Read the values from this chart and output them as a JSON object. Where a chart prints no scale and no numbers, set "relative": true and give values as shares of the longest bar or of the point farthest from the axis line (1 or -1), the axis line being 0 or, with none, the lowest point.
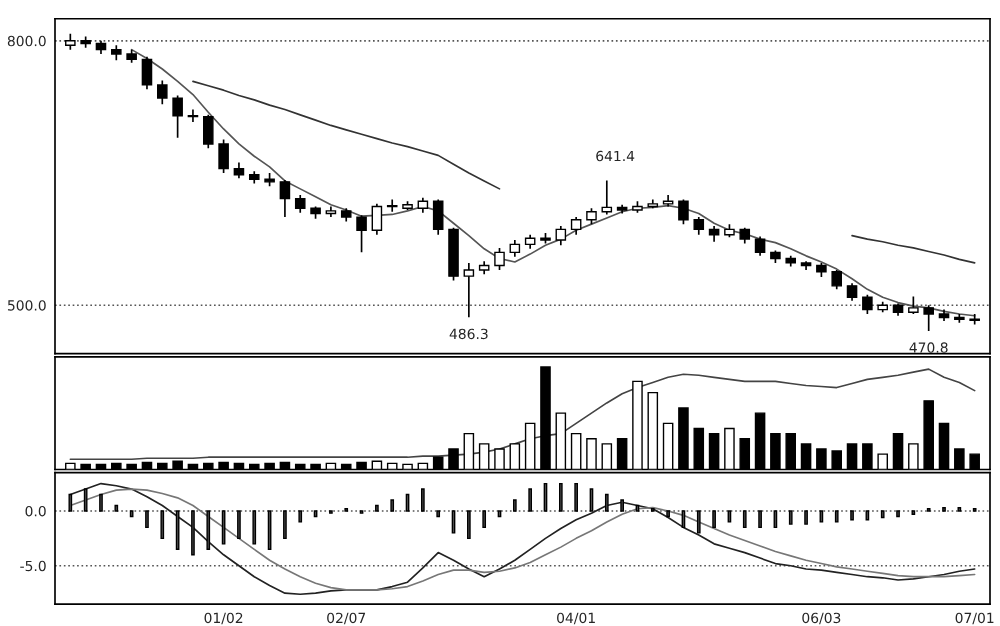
{
  "chart_data": [
    {
      "type": "candlestick",
      "categories": [
        null,
        null,
        null,
        null,
        null,
        null,
        null,
        null,
        null,
        null,
        null,
        null,
        null,
        null,
        null,
        null,
        null,
        null,
        null,
        null,
        null,
        null,
        null,
        null,
        null,
        null,
        null,
        null,
        null,
        null,
        null,
        null,
        null,
        null,
        null,
        null,
        null,
        null,
        null,
        null,
        null,
        null,
        null,
        null,
        null,
        null,
        null,
        null,
        null,
        null,
        null,
        null,
        null,
        null,
        null,
        null,
        null,
        null,
        null,
        null
      ],
      "ohlc": [
        [
          795,
          808,
          790,
          800
        ],
        [
          800,
          805,
          792,
          797
        ],
        [
          797,
          800,
          785,
          790
        ],
        [
          790,
          795,
          778,
          785
        ],
        [
          785,
          790,
          775,
          779
        ],
        [
          779,
          782,
          745,
          750
        ],
        [
          750,
          755,
          728,
          735
        ],
        [
          735,
          738,
          690,
          715
        ],
        [
          715,
          722,
          708,
          714
        ],
        [
          714,
          716,
          678,
          683
        ],
        [
          683,
          688,
          650,
          655
        ],
        [
          655,
          662,
          644,
          648
        ],
        [
          648,
          652,
          638,
          643
        ],
        [
          643,
          650,
          635,
          640
        ],
        [
          640,
          642,
          600,
          621
        ],
        [
          621,
          625,
          605,
          610
        ],
        [
          610,
          612,
          598,
          604
        ],
        [
          604,
          612,
          600,
          607
        ],
        [
          607,
          610,
          595,
          600
        ],
        [
          600,
          602,
          560,
          585
        ],
        [
          585,
          615,
          580,
          612
        ],
        [
          612,
          620,
          606,
          613
        ],
        [
          610,
          618,
          608,
          614
        ],
        [
          610,
          622,
          605,
          618
        ],
        [
          618,
          620,
          580,
          586
        ],
        [
          586,
          588,
          528,
          533
        ],
        [
          533,
          548,
          486.3,
          540
        ],
        [
          540,
          550,
          535,
          545
        ],
        [
          545,
          565,
          540,
          560
        ],
        [
          560,
          574,
          555,
          569
        ],
        [
          569,
          580,
          564,
          576
        ],
        [
          576,
          582,
          570,
          574
        ],
        [
          574,
          590,
          568,
          586
        ],
        [
          586,
          600,
          580,
          597
        ],
        [
          597,
          610,
          592,
          606
        ],
        [
          606,
          641.4,
          603,
          611
        ],
        [
          611,
          614,
          604,
          608
        ],
        [
          608,
          618,
          605,
          612
        ],
        [
          612,
          620,
          610,
          615
        ],
        [
          615,
          625,
          612,
          618
        ],
        [
          618,
          620,
          592,
          597
        ],
        [
          597,
          600,
          580,
          586
        ],
        [
          586,
          590,
          572,
          580
        ],
        [
          580,
          592,
          577,
          586
        ],
        [
          586,
          588,
          570,
          575
        ],
        [
          575,
          578,
          556,
          560
        ],
        [
          560,
          562,
          548,
          553
        ],
        [
          553,
          556,
          544,
          548
        ],
        [
          548,
          550,
          540,
          545
        ],
        [
          545,
          548,
          532,
          538
        ],
        [
          538,
          540,
          518,
          522
        ],
        [
          522,
          525,
          505,
          509
        ],
        [
          509,
          512,
          490,
          495
        ],
        [
          495,
          504,
          492,
          500
        ],
        [
          500,
          502,
          488,
          492
        ],
        [
          492,
          510,
          490,
          497
        ],
        [
          497,
          500,
          470.8,
          490
        ],
        [
          490,
          495,
          482,
          486
        ],
        [
          486,
          490,
          480,
          484
        ],
        [
          484,
          490,
          478,
          483
        ]
      ],
      "series": [
        {
          "type": "line",
          "color": "#555555",
          "values": [
            null,
            null,
            null,
            null,
            790,
            780,
            768,
            754,
            739,
            719,
            700,
            683,
            669,
            657,
            641,
            632,
            623,
            614,
            608,
            601,
            602,
            603,
            607,
            612,
            607,
            593,
            579,
            564,
            553,
            549,
            558,
            568,
            575,
            585,
            592,
            599,
            606,
            610,
            611,
            613,
            610,
            604,
            593,
            585,
            581,
            575,
            571,
            564,
            556,
            549,
            541,
            530,
            518,
            509,
            503,
            499,
            497,
            493,
            490,
            488
          ]
        },
        {
          "type": "line",
          "color": "#333333",
          "values": [
            null,
            null,
            null,
            null,
            null,
            null,
            null,
            null,
            754,
            749,
            744,
            738,
            733,
            727,
            722,
            716,
            710,
            704,
            699,
            694,
            689,
            684,
            680,
            675,
            670,
            660,
            650,
            641,
            632,
            null,
            null,
            null,
            null,
            null,
            null,
            null,
            null,
            null,
            null,
            null,
            null,
            null,
            null,
            null,
            null,
            null,
            null,
            null,
            null,
            null,
            null,
            579,
            575,
            572,
            568,
            565,
            561,
            557,
            552,
            548
          ]
        }
      ],
      "ylim": [
        445,
        825
      ],
      "yticks": [
        {
          "value": 500,
          "label": "500.0"
        },
        {
          "value": 800,
          "label": "800.0"
        }
      ],
      "grid": "y",
      "tick_labels": "y",
      "annotations": [
        {
          "text": "486.3",
          "y": 486.3
        },
        {
          "text": "641.4",
          "y": 641.4
        },
        {
          "text": "470.8",
          "y": 470.8
        }
      ]
    },
    {
      "type": "bar",
      "relative": true,
      "categories": [
        null,
        null,
        null,
        null,
        null,
        null,
        null,
        null,
        null,
        null,
        null,
        null,
        null,
        null,
        null,
        null,
        null,
        null,
        null,
        null,
        null,
        null,
        null,
        null,
        null,
        null,
        null,
        null,
        null,
        null,
        null,
        null,
        null,
        null,
        null,
        null,
        null,
        null,
        null,
        null,
        null,
        null,
        null,
        null,
        null,
        null,
        null,
        null,
        null,
        null,
        null,
        null,
        null,
        null,
        null,
        null,
        null,
        null,
        null,
        null
      ],
      "tick_labels": false,
      "series": [
        {
          "type": "bar",
          "values": [
            0.06,
            0.05,
            0.05,
            0.06,
            0.05,
            0.07,
            0.06,
            0.08,
            0.05,
            0.06,
            0.07,
            0.06,
            0.05,
            0.06,
            0.07,
            0.05,
            0.05,
            0.06,
            0.05,
            0.07,
            0.08,
            0.06,
            0.05,
            0.06,
            0.12,
            0.2,
            0.35,
            0.25,
            0.2,
            0.25,
            0.45,
            1.0,
            0.55,
            0.35,
            0.3,
            0.25,
            0.3,
            0.86,
            0.75,
            0.45,
            0.6,
            0.4,
            0.35,
            0.4,
            0.3,
            0.55,
            0.35,
            0.35,
            0.25,
            0.2,
            0.18,
            0.25,
            0.25,
            0.15,
            0.35,
            0.25,
            0.67,
            0.45,
            0.2,
            0.15
          ],
          "colors": [
            "#ffffff",
            "#000000",
            "#000000",
            "#000000",
            "#000000",
            "#000000",
            "#000000",
            "#000000",
            "#000000",
            "#000000",
            "#000000",
            "#000000",
            "#000000",
            "#000000",
            "#000000",
            "#000000",
            "#000000",
            "#ffffff",
            "#000000",
            "#000000",
            "#ffffff",
            "#ffffff",
            "#ffffff",
            "#ffffff",
            "#000000",
            "#000000",
            "#ffffff",
            "#ffffff",
            "#ffffff",
            "#ffffff",
            "#ffffff",
            "#000000",
            "#ffffff",
            "#ffffff",
            "#ffffff",
            "#ffffff",
            "#000000",
            "#ffffff",
            "#ffffff",
            "#ffffff",
            "#000000",
            "#000000",
            "#000000",
            "#ffffff",
            "#000000",
            "#000000",
            "#000000",
            "#000000",
            "#000000",
            "#000000",
            "#000000",
            "#000000",
            "#000000",
            "#ffffff",
            "#000000",
            "#ffffff",
            "#000000",
            "#000000",
            "#000000",
            "#000000"
          ]
        },
        {
          "type": "line",
          "color": "#444444",
          "values": [
            0.1,
            0.1,
            0.1,
            0.1,
            0.1,
            0.11,
            0.11,
            0.11,
            0.11,
            0.12,
            0.12,
            0.12,
            0.12,
            0.12,
            0.12,
            0.12,
            0.12,
            0.12,
            0.12,
            0.12,
            0.12,
            0.12,
            0.12,
            0.13,
            0.13,
            0.14,
            0.15,
            0.17,
            0.2,
            0.25,
            0.3,
            0.33,
            0.35,
            0.45,
            0.55,
            0.65,
            0.74,
            0.8,
            0.85,
            0.9,
            0.93,
            0.92,
            0.9,
            0.88,
            0.86,
            0.86,
            0.86,
            0.84,
            0.82,
            0.81,
            0.8,
            0.84,
            0.88,
            0.9,
            0.92,
            0.95,
            0.98,
            0.9,
            0.85,
            0.77
          ]
        }
      ]
    },
    {
      "type": "bar",
      "categories": [
        null,
        null,
        null,
        null,
        null,
        null,
        null,
        null,
        null,
        null,
        "01/02",
        null,
        null,
        null,
        null,
        null,
        null,
        null,
        "02/07",
        null,
        null,
        null,
        null,
        null,
        null,
        null,
        null,
        null,
        null,
        null,
        null,
        null,
        null,
        "04/01",
        null,
        null,
        null,
        null,
        null,
        null,
        null,
        null,
        null,
        null,
        null,
        null,
        null,
        null,
        null,
        "06/03",
        null,
        null,
        null,
        null,
        null,
        null,
        null,
        null,
        null,
        "07/01"
      ],
      "ylim": [
        -8.5,
        3.5
      ],
      "yticks": [
        {
          "value": -5,
          "label": "-5.0"
        },
        {
          "value": 0,
          "label": "0.0"
        }
      ],
      "grid": "y",
      "series": [
        {
          "type": "bar",
          "color": "#555555",
          "values": [
            1.5,
            2.0,
            1.5,
            0.5,
            -0.5,
            -1.5,
            -2.5,
            -3.5,
            -4.0,
            -3.5,
            -3.0,
            -2.5,
            -3.0,
            -3.5,
            -2.5,
            -1.0,
            -0.5,
            -0.2,
            0.2,
            -0.2,
            0.5,
            1.0,
            1.5,
            2.0,
            -0.5,
            -2.0,
            -2.5,
            -1.5,
            -0.5,
            1.0,
            2.0,
            2.5,
            2.5,
            2.5,
            2.0,
            1.5,
            1.0,
            0.5,
            0.2,
            -0.5,
            -1.5,
            -2.0,
            -1.5,
            -1.0,
            -1.5,
            -1.5,
            -1.5,
            -1.2,
            -1.2,
            -1.0,
            -1.0,
            -0.8,
            -0.8,
            -0.6,
            -0.5,
            -0.3,
            0.2,
            0.3,
            0.3,
            0.2
          ]
        },
        {
          "type": "line",
          "color": "#222222",
          "values": [
            1.5,
            2.0,
            2.5,
            2.3,
            2.0,
            1.3,
            0.5,
            -0.5,
            -1.5,
            -2.8,
            -4.0,
            -5.0,
            -6.0,
            -6.8,
            -7.5,
            -7.6,
            -7.5,
            -7.3,
            -7.2,
            -7.2,
            -7.2,
            -6.9,
            -6.5,
            -5.2,
            -3.8,
            -4.5,
            -5.3,
            -6.0,
            -5.3,
            -4.5,
            -3.5,
            -2.5,
            -1.6,
            -0.8,
            -0.2,
            0.5,
            0.8,
            0.5,
            0.2,
            -0.6,
            -1.5,
            -2.2,
            -3.0,
            -3.4,
            -3.8,
            -4.3,
            -4.8,
            -5.0,
            -5.3,
            -5.4,
            -5.6,
            -5.8,
            -6.0,
            -6.1,
            -6.3,
            -6.2,
            -6.0,
            -5.8,
            -5.5,
            -5.3
          ]
        },
        {
          "type": "line",
          "color": "#777777",
          "values": [
            0.5,
            1.0,
            1.5,
            1.9,
            2.0,
            1.9,
            1.6,
            1.2,
            0.5,
            -0.5,
            -1.5,
            -2.5,
            -3.5,
            -4.5,
            -5.3,
            -6.0,
            -6.6,
            -7.0,
            -7.2,
            -7.2,
            -7.2,
            -7.1,
            -6.9,
            -6.4,
            -5.8,
            -5.4,
            -5.4,
            -5.6,
            -5.5,
            -5.2,
            -4.7,
            -4.0,
            -3.3,
            -2.5,
            -1.8,
            -1.0,
            -0.3,
            0.2,
            0.3,
            0.0,
            -0.4,
            -1.0,
            -1.6,
            -2.2,
            -2.7,
            -3.2,
            -3.7,
            -4.1,
            -4.5,
            -4.8,
            -5.1,
            -5.3,
            -5.5,
            -5.7,
            -5.9,
            -6.0,
            -6.0,
            -6.0,
            -5.9,
            -5.8
          ]
        }
      ]
    }
  ]
}
